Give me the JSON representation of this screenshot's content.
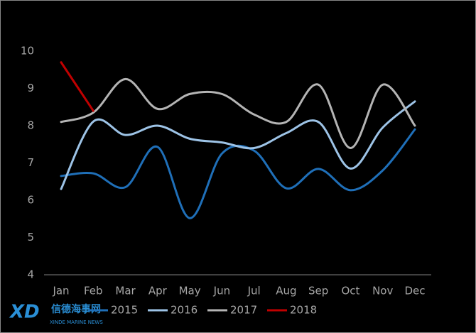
{
  "chart_data": {
    "type": "line",
    "categories": [
      "Jan",
      "Feb",
      "Mar",
      "Apr",
      "May",
      "Jun",
      "Jul",
      "Aug",
      "Sep",
      "Oct",
      "Nov",
      "Dec"
    ],
    "series": [
      {
        "name": "2015",
        "color": "#1f6fb8",
        "values": [
          6.65,
          6.72,
          6.35,
          7.43,
          5.52,
          7.25,
          7.33,
          6.32,
          6.84,
          6.27,
          6.8,
          7.9
        ]
      },
      {
        "name": "2016",
        "color": "#9dc3e6",
        "values": [
          6.3,
          8.11,
          7.75,
          8.0,
          7.65,
          7.55,
          7.4,
          7.8,
          8.1,
          6.85,
          7.95,
          8.65
        ]
      },
      {
        "name": "2017",
        "color": "#b4b4b4",
        "values": [
          8.1,
          8.35,
          9.25,
          8.45,
          8.85,
          8.85,
          8.3,
          8.1,
          9.1,
          7.4,
          9.1,
          8.0
        ]
      },
      {
        "name": "2018",
        "color": "#c00000",
        "values": [
          9.7,
          8.4,
          null,
          null,
          null,
          null,
          null,
          null,
          null,
          null,
          null,
          null
        ]
      }
    ],
    "ylim": [
      4,
      10
    ],
    "yticks": [
      4,
      5,
      6,
      7,
      8,
      9,
      10
    ],
    "legend": "bottom"
  },
  "watermark": {
    "logo": "XD",
    "name": "信德海事网",
    "subtitle": "XINDE MARINE NEWS"
  }
}
